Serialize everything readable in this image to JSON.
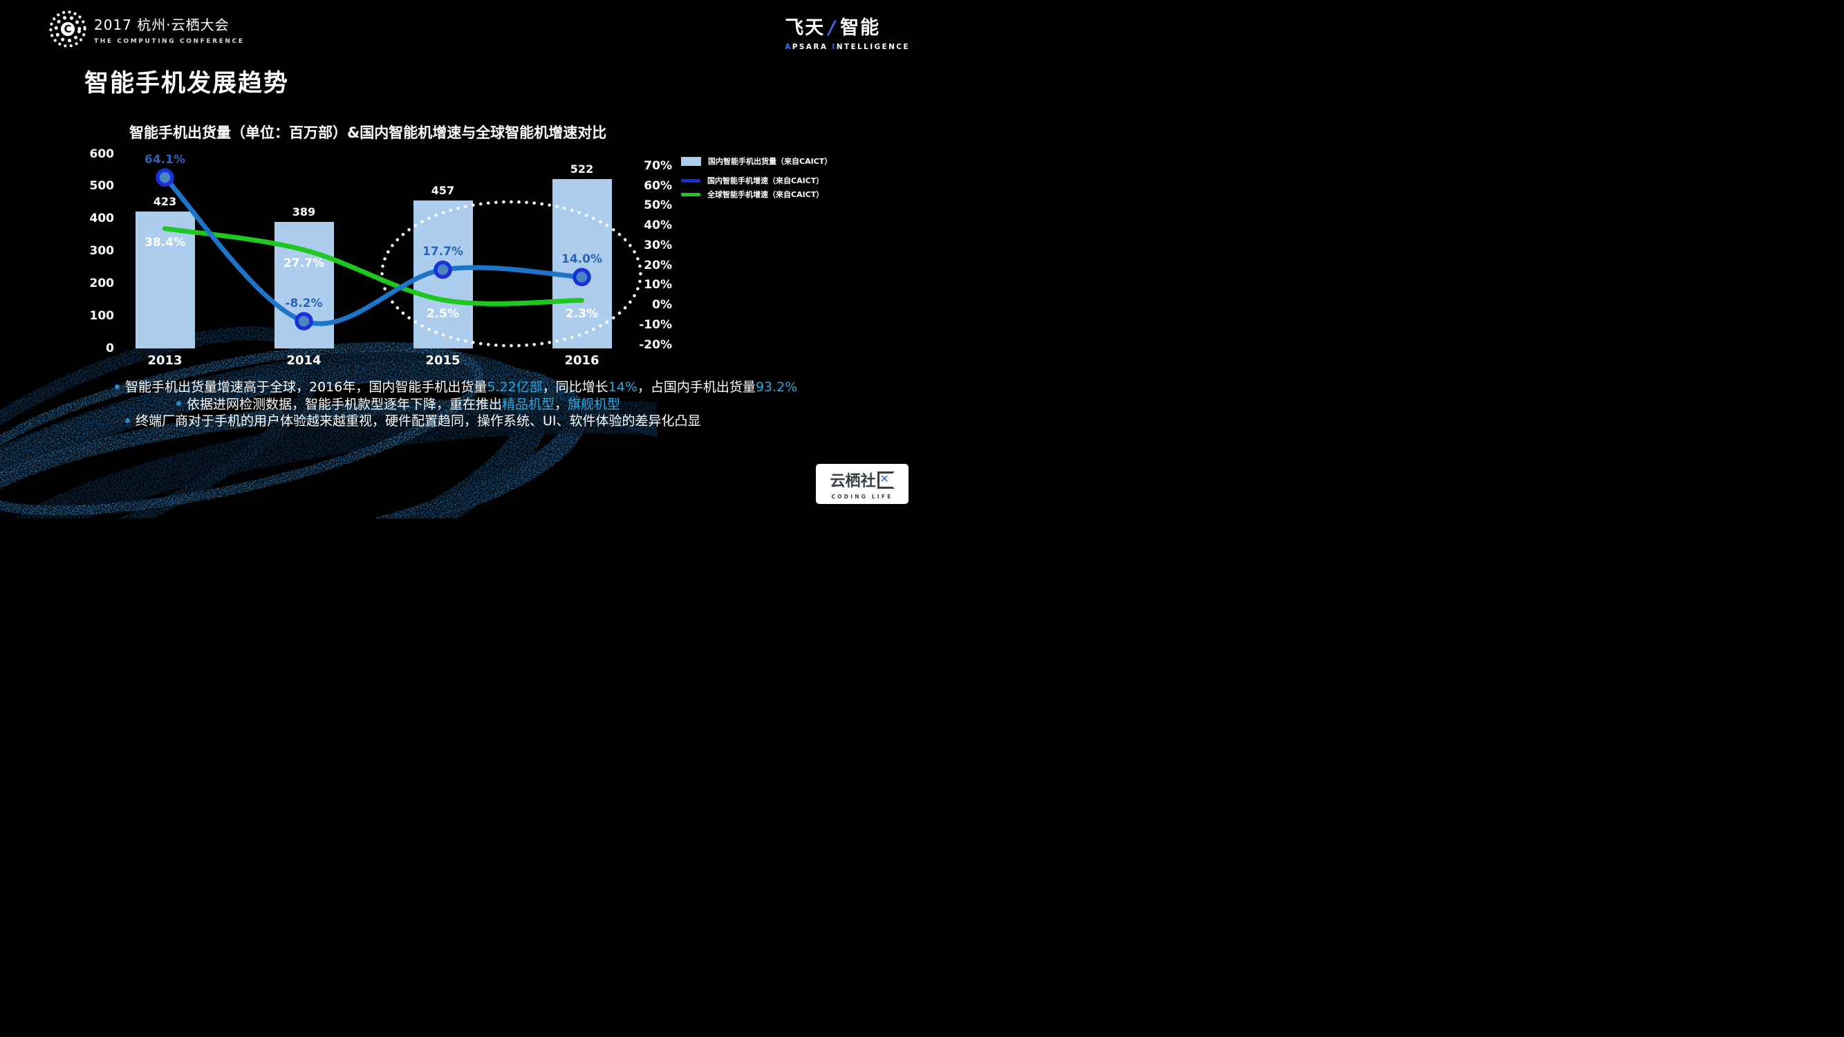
{
  "header": {
    "conference_title": "2017 杭州·云栖大会",
    "conference_subtitle": "THE COMPUTING CONFERENCE",
    "logo_letter": "C",
    "brand_cn_left": "飞天",
    "brand_slash": "/",
    "brand_cn_right": "智能",
    "brand_en_segments": [
      {
        "text": "A",
        "blue": true
      },
      {
        "text": "PSARA ",
        "blue": false
      },
      {
        "text": "I",
        "blue": true
      },
      {
        "text": "NTELLIGENCE",
        "blue": false
      }
    ]
  },
  "page_title": "智能手机发展趋势",
  "chart_data": {
    "type": "bar+line",
    "title": "智能手机出货量（单位：百万部）&国内智能机增速与全球智能机增速对比",
    "categories": [
      "2013",
      "2014",
      "2015",
      "2016"
    ],
    "bars": {
      "name": "国内智能手机出货量（来自CAICT）",
      "values": [
        423,
        389,
        457,
        522
      ],
      "value_labels": [
        "423",
        "389",
        "457",
        "522"
      ],
      "color": "#ADCDEE",
      "unit": "百万部"
    },
    "series": [
      {
        "name": "国内智能手机增速（来自CAICT）",
        "values_pct": [
          64.1,
          -8.2,
          17.7,
          14.0
        ],
        "labels": [
          "64.1%",
          "-8.2%",
          "17.7%",
          "14.0%"
        ],
        "line_color": "#1E74C8",
        "marker_fill": "#4C86C0",
        "marker_ring": "#1632D8",
        "legend_color": "#1430DC",
        "label_color": "#2A64B4"
      },
      {
        "name": "全球智能手机增速（来自CAICT）",
        "values_pct": [
          38.4,
          27.7,
          2.5,
          2.3
        ],
        "labels": [
          "38.4%",
          "27.7%",
          "2.5%",
          "2.3%"
        ],
        "line_color": "#1FC81F",
        "legend_color": "#1FC81F",
        "label_color": "#FFFFFF"
      }
    ],
    "left_axis": {
      "min": 0,
      "max": 600,
      "step": 100,
      "ticks": [
        "600",
        "500",
        "400",
        "300",
        "200",
        "100",
        "0"
      ]
    },
    "right_axis": {
      "min": -20,
      "max": 70,
      "step": 10,
      "ticks": [
        "70%",
        "60%",
        "50%",
        "40%",
        "30%",
        "20%",
        "10%",
        "0%",
        "-10%",
        "-20%"
      ]
    },
    "legend_position": "top-right",
    "grid": false,
    "annotation": "dotted-ellipse around 2015-2016"
  },
  "bullets": [
    {
      "segments": [
        {
          "text": "智能手机出货量增速高于全球，2016年，国内智能手机出货量",
          "hl": false
        },
        {
          "text": "5.22亿部",
          "hl": true
        },
        {
          "text": "，同比增长",
          "hl": false
        },
        {
          "text": "14%",
          "hl": true
        },
        {
          "text": "，占国内手机出货量",
          "hl": false
        },
        {
          "text": "93.2%",
          "hl": true
        }
      ]
    },
    {
      "segments": [
        {
          "text": "依据进网检测数据，智能手机款型逐年下降，重在推出",
          "hl": false
        },
        {
          "text": "精品机型",
          "hl": true
        },
        {
          "text": "，",
          "hl": false
        },
        {
          "text": "旗舰机型",
          "hl": true
        }
      ]
    },
    {
      "segments": [
        {
          "text": "终端厂商对于手机的用户体验越来越重视，硬件配置趋同，操作系统、UI、软件体验的差异化凸显",
          "hl": false
        }
      ]
    }
  ],
  "badge": {
    "cn": "云栖社区",
    "en": "CODING LIFE"
  },
  "colors": {
    "background": "#000000",
    "highlight_text": "#2AA9E0",
    "bullet_dot": "#2C86C8",
    "ellipse_dots": "#FFFFFF",
    "swirl_blue": "#1E6AA6"
  }
}
